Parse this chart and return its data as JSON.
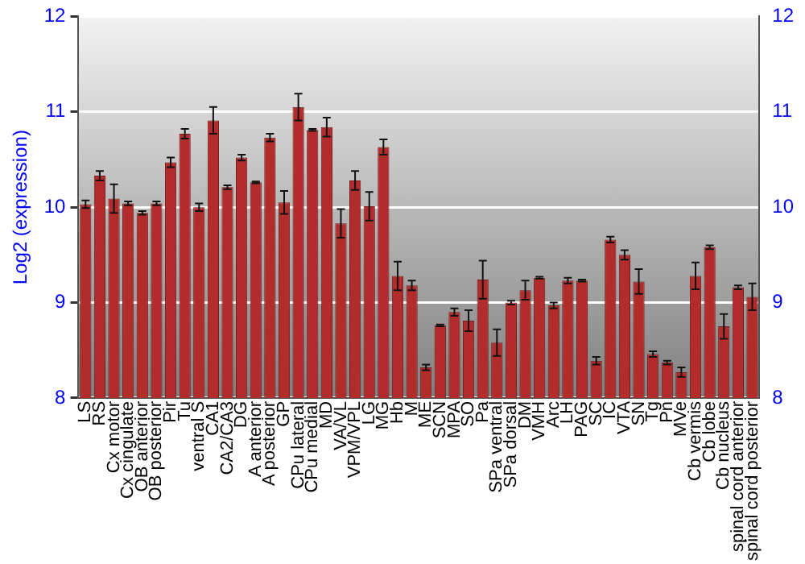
{
  "chart_data": {
    "type": "bar",
    "ylabel": "Log2 (expression)",
    "categories": [
      "LS",
      "RS",
      "Cx motor",
      "Cx cingulate",
      "OB anterior",
      "OB posterior",
      "Pir",
      "Tu",
      "ventral S",
      "CA1",
      "CA2/CA3",
      "DG",
      "A anterior",
      "A posterior",
      "GP",
      "CPu lateral",
      "CPu medial",
      "MD",
      "VA/VL",
      "VPM/VPL",
      "LG",
      "MG",
      "Hb",
      "M",
      "ME",
      "SCN",
      "MPA",
      "SO",
      "Pa",
      "SPa ventral",
      "SPa dorsal",
      "DM",
      "VMH",
      "Arc",
      "LH",
      "PAG",
      "SC",
      "IC",
      "VTA",
      "SN",
      "Tg",
      "Pn",
      "MVe",
      "Cb vermis",
      "Cb lobe",
      "Cb nucleus",
      "spinal cord anterior",
      "spinal cord posterior"
    ],
    "values": [
      10.03,
      10.33,
      10.09,
      10.04,
      9.94,
      10.04,
      10.47,
      10.77,
      10.0,
      10.91,
      10.21,
      10.52,
      10.26,
      10.73,
      10.05,
      11.05,
      10.81,
      10.84,
      9.83,
      10.28,
      10.01,
      10.63,
      9.28,
      9.18,
      8.32,
      8.76,
      8.9,
      8.81,
      9.24,
      8.58,
      9.0,
      9.13,
      9.26,
      8.97,
      9.23,
      9.23,
      8.39,
      9.66,
      9.5,
      9.22,
      8.46,
      8.37,
      8.27,
      9.28,
      9.58,
      8.75,
      9.16,
      9.06
    ],
    "errors": [
      0.04,
      0.05,
      0.15,
      0.02,
      0.02,
      0.02,
      0.05,
      0.05,
      0.04,
      0.14,
      0.02,
      0.03,
      0.01,
      0.04,
      0.12,
      0.14,
      0.01,
      0.1,
      0.15,
      0.1,
      0.15,
      0.08,
      0.15,
      0.05,
      0.03,
      0.01,
      0.04,
      0.11,
      0.2,
      0.14,
      0.02,
      0.1,
      0.01,
      0.03,
      0.03,
      0.01,
      0.04,
      0.03,
      0.05,
      0.13,
      0.03,
      0.02,
      0.05,
      0.14,
      0.02,
      0.13,
      0.02,
      0.14
    ],
    "color": "#b22c2c",
    "ylim": [
      8,
      12
    ],
    "yticks": [
      8,
      9,
      10,
      11,
      12
    ],
    "y2lim": [
      8,
      12
    ],
    "y2ticks": [
      8,
      9,
      10,
      11,
      12
    ],
    "grid": "y",
    "legend": false
  }
}
